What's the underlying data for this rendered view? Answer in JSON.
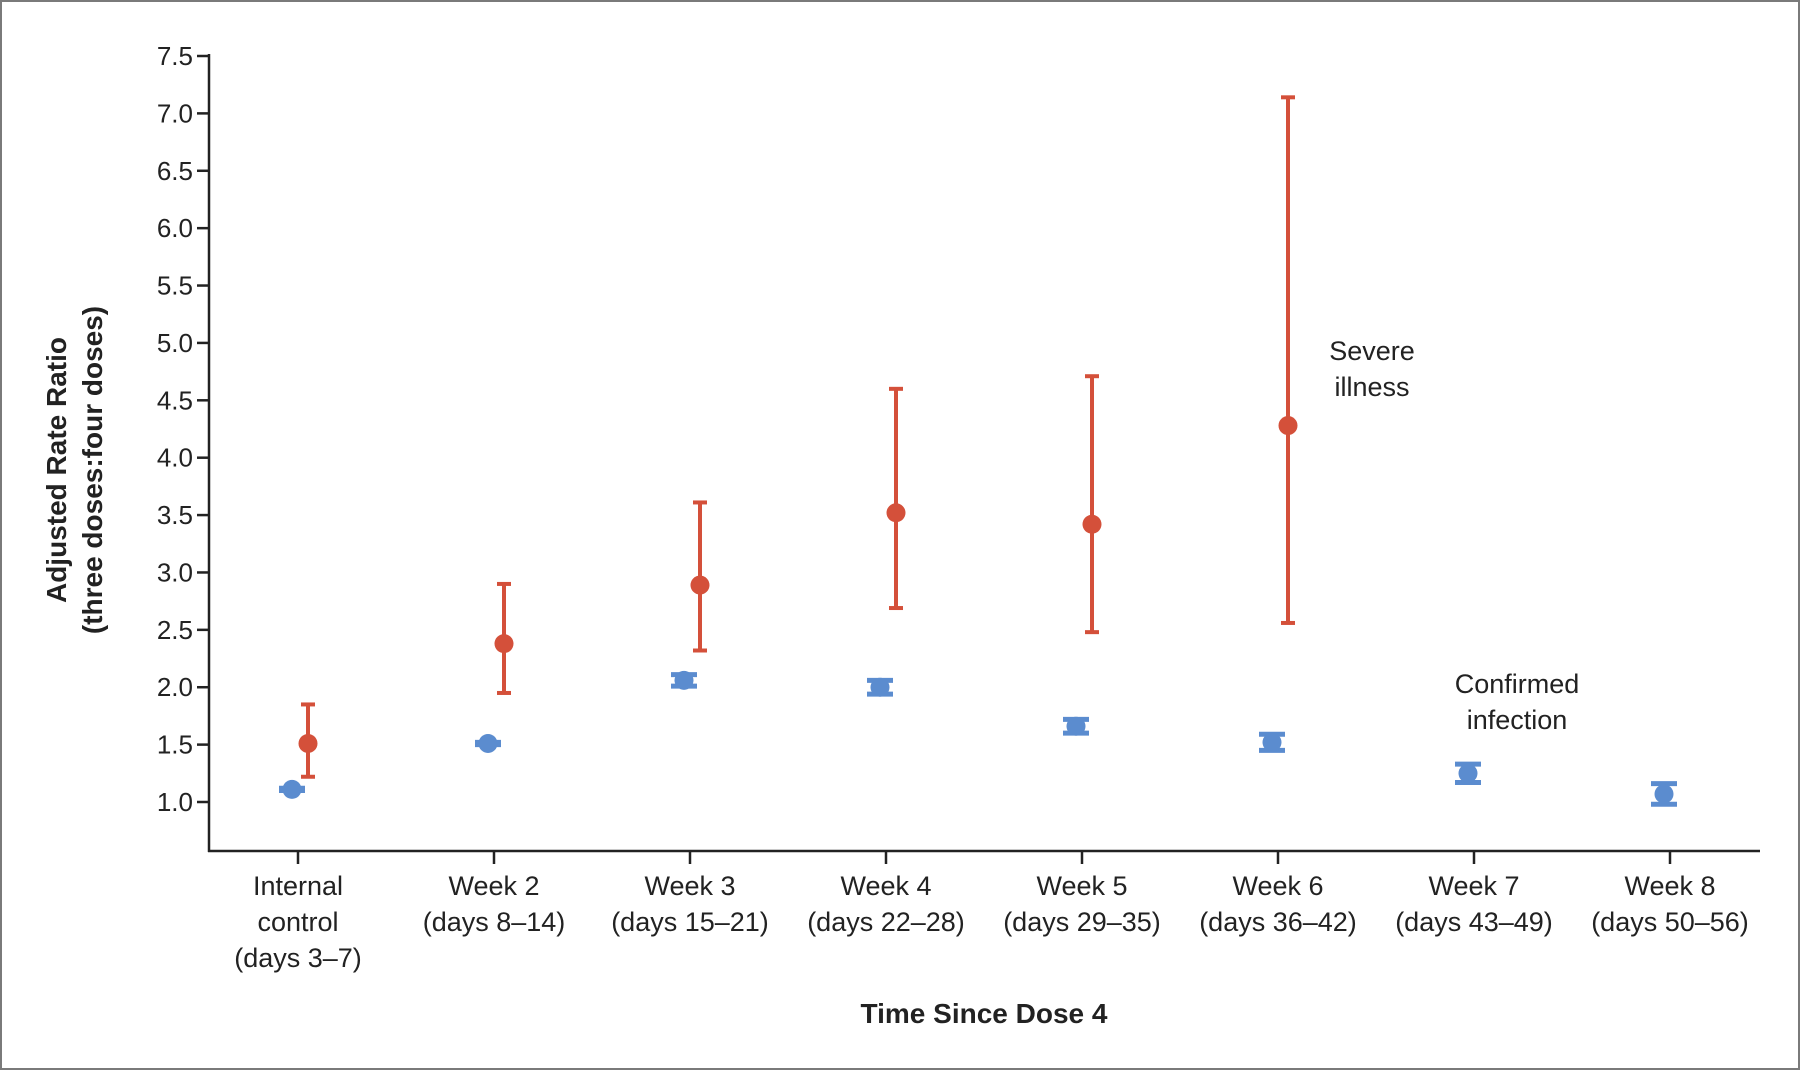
{
  "chart_data": {
    "type": "scatter",
    "subtype": "point-with-error-bars",
    "title": "",
    "xlabel": "Time Since Dose 4",
    "ylabel_lines": [
      "Adjusted Rate Ratio",
      "(three doses:four doses)"
    ],
    "ylim": [
      0.5,
      7.5
    ],
    "yticks": [
      "1.0",
      "1.5",
      "2.0",
      "2.5",
      "3.0",
      "3.5",
      "4.0",
      "4.5",
      "5.0",
      "5.5",
      "6.0",
      "6.5",
      "7.0",
      "7.5"
    ],
    "grid": false,
    "categories": [
      [
        "Internal",
        "control",
        "(days 3–7)"
      ],
      [
        "Week 2",
        "(days 8–14)"
      ],
      [
        "Week 3",
        "(days 15–21)"
      ],
      [
        "Week 4",
        "(days 22–28)"
      ],
      [
        "Week 5",
        "(days 29–35)"
      ],
      [
        "Week 6",
        "(days 36–42)"
      ],
      [
        "Week 7",
        "(days 43–49)"
      ],
      [
        "Week 8",
        "(days 50–56)"
      ]
    ],
    "series": [
      {
        "key": "severe",
        "color": "#d4503a",
        "annotation": [
          "Severe",
          "illness"
        ],
        "values": [
          1.51,
          2.38,
          2.89,
          3.52,
          3.42,
          4.28,
          null,
          null
        ],
        "lower": [
          1.22,
          1.95,
          2.32,
          2.69,
          2.48,
          2.56,
          null,
          null
        ],
        "upper": [
          1.85,
          2.9,
          3.61,
          4.6,
          4.71,
          7.14,
          null,
          null
        ]
      },
      {
        "key": "confirmed",
        "color": "#5b8ccf",
        "annotation": [
          "Confirmed",
          "infection"
        ],
        "values": [
          1.11,
          1.51,
          2.06,
          2.0,
          1.66,
          1.52,
          1.25,
          1.07
        ],
        "lower": [
          1.1,
          1.5,
          2.01,
          1.94,
          1.6,
          1.45,
          1.17,
          0.98
        ],
        "upper": [
          1.12,
          1.52,
          2.11,
          2.06,
          1.72,
          1.59,
          1.33,
          1.16
        ]
      }
    ]
  }
}
